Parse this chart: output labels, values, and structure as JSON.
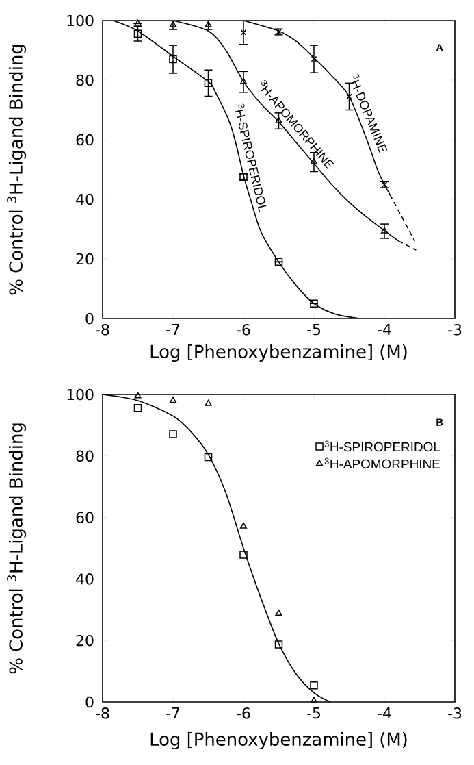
{
  "chart_data": [
    {
      "type": "scatter",
      "xlabel": "Log [Phenoxybenzamine] (M)",
      "ylabel": "% Control $^{3}$H-Ligand Binding",
      "annotations": [
        "A"
      ],
      "xlim": [
        -8,
        -3
      ],
      "ylim": [
        0,
        100
      ],
      "xticks": [
        -8,
        -7,
        -6,
        -5,
        -4,
        -3
      ],
      "yticks": [
        0,
        20,
        40,
        60,
        80,
        100
      ],
      "series": [
        {
          "name": "$^{3}$H-SPIROPERIDOL",
          "color": "#000000",
          "marker": "square",
          "x": [
            -7.5,
            -7,
            -6.5,
            -6,
            -5.5,
            -5
          ],
          "values": [
            95.6,
            87,
            79,
            47.5,
            19,
            5
          ],
          "errors": [
            2.5,
            4.7,
            4.4,
            1,
            null,
            null
          ]
        },
        {
          "type": "line",
          "color": "#000000",
          "line_style": "solid",
          "x": [
            -7.85,
            -7.5,
            -7,
            -6.5,
            -6.4,
            -6.2,
            -6.1,
            -6,
            -5.9,
            -5.75,
            -5.5,
            -5.25,
            -5,
            -4.7,
            -4.35
          ],
          "values": [
            100,
            96.5,
            88,
            79.5,
            76,
            66,
            58,
            48,
            40,
            29,
            19,
            11,
            5,
            1.5,
            0
          ]
        },
        {
          "name": "$^{3}$H-APOMORPHINE",
          "color": "#000000",
          "marker": "triangle",
          "x": [
            -7.5,
            -7,
            -6.5,
            -6,
            -5.5,
            -5,
            -4
          ],
          "values": [
            99,
            98.5,
            98.5,
            79.4,
            66.3,
            52.5,
            29.3
          ],
          "errors": [
            null,
            1.5,
            1.5,
            3.5,
            2.7,
            3.2,
            2.4
          ]
        },
        {
          "type": "line",
          "color": "#000000",
          "line_style": "solid",
          "x": [
            -7,
            -6.5,
            -6.25,
            -6,
            -5.75,
            -5.5,
            -5.25,
            -5,
            -4.75,
            -4.5,
            -4.25,
            -4,
            -3.8
          ],
          "values": [
            100,
            96.5,
            90,
            79.5,
            72,
            66,
            59,
            52,
            45,
            39,
            34,
            29.5,
            26
          ]
        },
        {
          "type": "line",
          "color": "#000000",
          "line_style": "dashed",
          "x": [
            -3.8,
            -3.55
          ],
          "values": [
            26,
            23
          ]
        },
        {
          "name": "$^{3}$H-DOPAMINE",
          "color": "#000000",
          "marker": "cross",
          "x": [
            -6,
            -5.5,
            -5,
            -4.5,
            -4
          ],
          "values": [
            96,
            96.2,
            87.1,
            74.5,
            44.9
          ],
          "errors": [
            4,
            1,
            4.6,
            4.5,
            1
          ]
        },
        {
          "type": "line",
          "color": "#000000",
          "line_style": "solid",
          "x": [
            -6,
            -5.5,
            -5.25,
            -5,
            -4.75,
            -4.5,
            -4.25,
            -4.1,
            -4,
            -3.92
          ],
          "values": [
            100,
            96.5,
            93,
            87.5,
            81.5,
            74.5,
            60,
            50,
            45,
            41.5
          ]
        },
        {
          "type": "line",
          "color": "#000000",
          "line_style": "dashed",
          "x": [
            -3.92,
            -3.57
          ],
          "values": [
            41.5,
            26
          ]
        }
      ]
    },
    {
      "type": "scatter",
      "xlabel": "Log [Phenoxybenzamine] (M)",
      "ylabel": "% Control $^{3}$H-Ligand Binding",
      "annotations": [
        "B"
      ],
      "legend": "top right",
      "xlim": [
        -8,
        -3
      ],
      "ylim": [
        0,
        100
      ],
      "xticks": [
        -8,
        -7,
        -6,
        -5,
        -4,
        -3
      ],
      "yticks": [
        0,
        20,
        40,
        60,
        80,
        100
      ],
      "series": [
        {
          "type": "line",
          "color": "#000000",
          "line_style": "solid",
          "x": [
            -8,
            -7.5,
            -7,
            -6.75,
            -6.5,
            -6.25,
            -6,
            -5.75,
            -5.5,
            -5.25,
            -5,
            -4.77
          ],
          "values": [
            100,
            98,
            93,
            88,
            80.5,
            68,
            50,
            33.6,
            19,
            9,
            3,
            0
          ]
        },
        {
          "name": "$^{3}$H-SPIROPERIDOL",
          "color": "#000000",
          "marker": "square",
          "x": [
            -7.5,
            -7,
            -6.5,
            -6,
            -5.5,
            -5
          ],
          "values": [
            95.6,
            87.1,
            79.6,
            47.9,
            18.7,
            5.4
          ]
        },
        {
          "name": "$^{3}$H-APOMORPHINE",
          "color": "#000000",
          "marker": "triangle",
          "x": [
            -7.5,
            -7,
            -6.5,
            -6,
            -5.5,
            -5
          ],
          "values": [
            99.5,
            98,
            97,
            57.1,
            28.8,
            0.4
          ]
        }
      ]
    }
  ]
}
